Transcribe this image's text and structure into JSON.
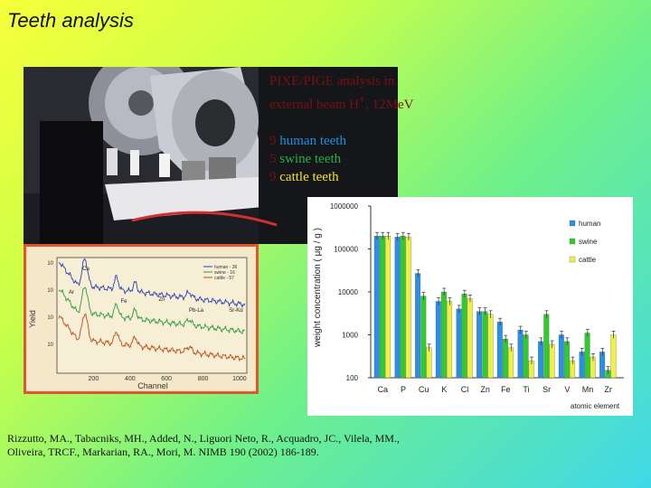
{
  "slide": {
    "title": "Teeth analysis",
    "method_line1": "PIXE/PIGE analysis in",
    "method_line2": "external beam H",
    "method_sup": "+",
    "method_tail": ", 12MeV",
    "samples": [
      {
        "count": "9",
        "label": "human teeth",
        "color": "#1a8fe0"
      },
      {
        "count": "5",
        "label": "swine teeth",
        "color": "#27b04a"
      },
      {
        "count": "9",
        "label": "cattle teeth",
        "color": "#f4e520"
      }
    ],
    "citation": "Rizzutto, MA., Tabacniks, MH., Added, N., Liguori Neto, R., Acquadro, JC., Vilela, MM., Oliveira, TRCF., Markarian, RA., Mori, M. NIMB 190 (2002) 186-189."
  },
  "spectrum": {
    "ylabel": "Yield",
    "xlabel": "Channel",
    "xticks": [
      "200",
      "400",
      "600",
      "800",
      "1000"
    ],
    "yticks": [
      "10",
      "10",
      "10",
      "10"
    ],
    "legend": [
      "human - 36",
      "swine - 16",
      "cattle - 57"
    ],
    "colors": [
      "#2a3fb0",
      "#2a9a3a",
      "#c04a10"
    ],
    "peaks": [
      "Ca",
      "Ar",
      "Fe",
      "Zn",
      "Pb-La",
      "Sr-Kα"
    ]
  },
  "chart_data": {
    "type": "bar",
    "log_scale": true,
    "categories": [
      "Ca",
      "P",
      "Cu",
      "K",
      "Cl",
      "Zn",
      "Fe",
      "Ti",
      "Sr",
      "V",
      "Mn",
      "Zr"
    ],
    "series": [
      {
        "name": "human",
        "color": "#2a8fe6",
        "values": [
          200000,
          190000,
          27000,
          6000,
          4000,
          3500,
          2000,
          1300,
          700,
          1000,
          400,
          400
        ]
      },
      {
        "name": "swine",
        "color": "#2fcc2f",
        "values": [
          200000,
          200000,
          8000,
          10000,
          9000,
          3500,
          800,
          1000,
          3000,
          700,
          1100,
          150
        ]
      },
      {
        "name": "cattle",
        "color": "#f0f040",
        "values": [
          200000,
          190000,
          500,
          6000,
          7000,
          3000,
          500,
          250,
          600,
          250,
          300,
          1000
        ]
      }
    ],
    "ylabel": "weight concentration ( μg / g )",
    "xlabel": "atomic element",
    "ylim": [
      100,
      1000000
    ],
    "yticks": [
      100,
      1000,
      10000,
      100000,
      1000000
    ],
    "ytick_labels": [
      "100",
      "1000",
      "10000",
      "100000",
      "1000000"
    ],
    "legend_position": "top-right",
    "grid": false
  }
}
